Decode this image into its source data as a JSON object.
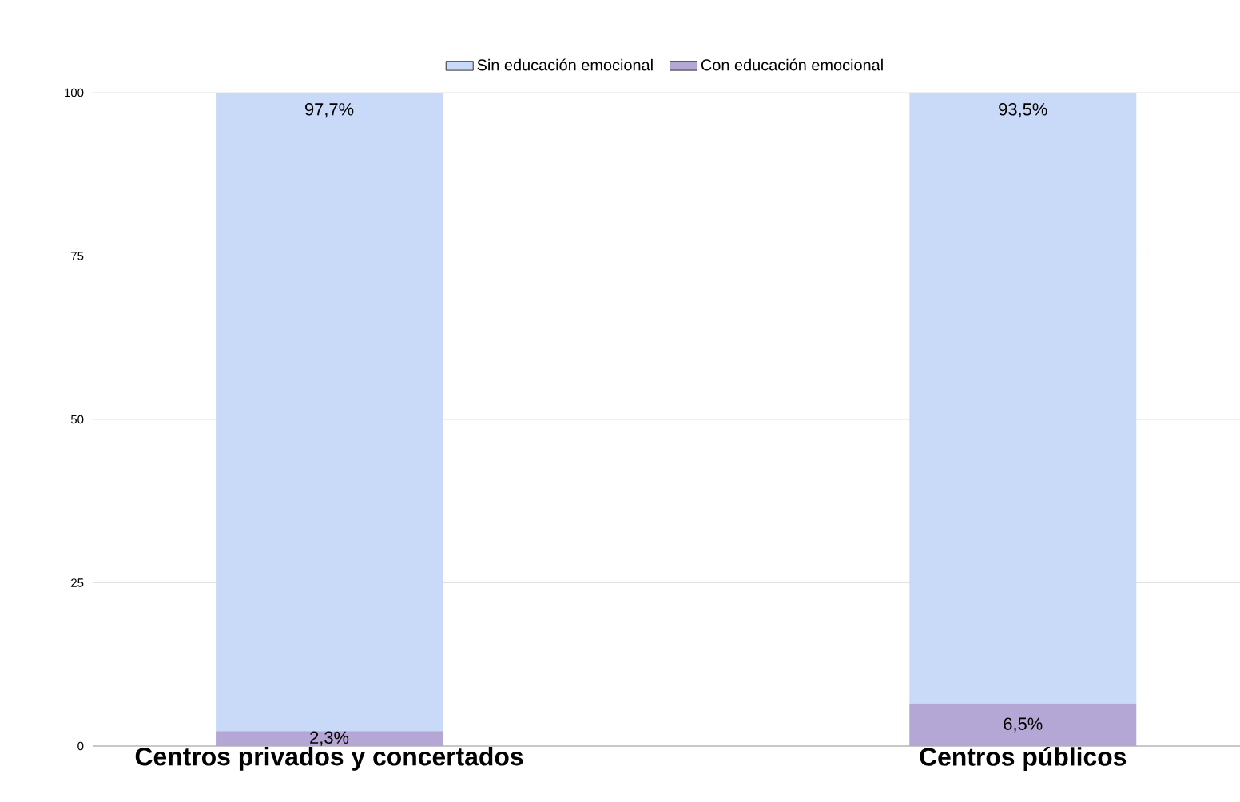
{
  "chart_data": {
    "type": "bar",
    "stacked": true,
    "categories": [
      "Centros privados y concertados",
      "Centros públicos"
    ],
    "series": [
      {
        "name": "Con educación emocional",
        "color": "#b4a7d6",
        "values": [
          2.3,
          6.5
        ],
        "value_labels": [
          "2,3%",
          "6,5%"
        ]
      },
      {
        "name": "Sin educación emocional",
        "color": "#c9daf8",
        "values": [
          97.7,
          93.5
        ],
        "value_labels": [
          "97,7%",
          "93,5%"
        ]
      }
    ],
    "ylim": [
      0,
      100
    ],
    "yticks": [
      0,
      25,
      50,
      75,
      100
    ],
    "grid": "y",
    "legend": "top"
  }
}
